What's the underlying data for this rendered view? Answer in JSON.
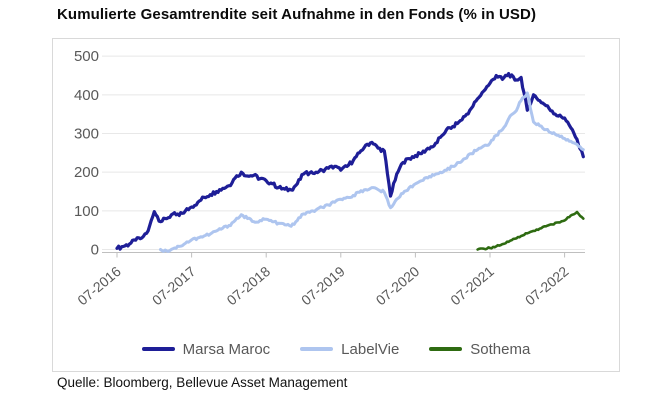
{
  "title": "Kumulierte Gesamtrendite seit Aufnahme in den Fonds (% in USD)",
  "source": "Quelle: Bloomberg, Bellevue Asset Management",
  "colors": {
    "grid": "#e8e8e8",
    "axis_line": "#bfbfbf",
    "tick_text": "#595959",
    "panel_border": "#d9d9d9",
    "title_text": "#0b0b0b",
    "source_text": "#111111"
  },
  "chart_data": {
    "type": "line",
    "title": "Kumulierte Gesamtrendite seit Aufnahme in den Fonds (% in USD)",
    "ylabel": "",
    "xlabel": "",
    "y_axis": {
      "ticks": [
        0,
        100,
        200,
        300,
        400,
        500
      ],
      "drawn_range": [
        -10,
        545
      ],
      "unit": "%"
    },
    "x_axis": {
      "tick_labels": [
        "07-2016",
        "07-2017",
        "07-2018",
        "07-2019",
        "07-2020",
        "07-2021",
        "07-2022"
      ],
      "tick_month_index": [
        0,
        12,
        24,
        36,
        48,
        60,
        72
      ],
      "start_month": "2016-07",
      "end_month": "2022-10",
      "label_rotation_deg": -40
    },
    "grid": "horizontal",
    "legend_position": "bottom-center",
    "cadence": "monthly",
    "series": [
      {
        "name": "Marsa Maroc",
        "color": "#1e1e97",
        "start_month_index": 0,
        "start_month": "2016-07",
        "values": [
          3,
          8,
          14,
          24,
          30,
          48,
          98,
          72,
          80,
          92,
          88,
          100,
          110,
          122,
          135,
          142,
          150,
          158,
          165,
          185,
          200,
          190,
          192,
          183,
          178,
          170,
          160,
          156,
          154,
          170,
          195,
          198,
          200,
          205,
          210,
          215,
          205,
          215,
          230,
          250,
          270,
          277,
          262,
          255,
          138,
          195,
          225,
          235,
          243,
          248,
          262,
          268,
          290,
          310,
          318,
          330,
          345,
          365,
          390,
          410,
          430,
          450,
          440,
          455,
          438,
          445,
          360,
          400,
          385,
          372,
          358,
          345,
          340,
          315,
          285,
          240
        ]
      },
      {
        "name": "LabelVie",
        "color": "#aec5ef",
        "start_month_index": 7,
        "start_month": "2017-02",
        "values": [
          0,
          -4,
          2,
          8,
          16,
          25,
          30,
          35,
          40,
          48,
          55,
          62,
          75,
          90,
          80,
          72,
          75,
          78,
          72,
          68,
          64,
          60,
          75,
          92,
          96,
          102,
          109,
          115,
          122,
          130,
          135,
          140,
          148,
          155,
          160,
          155,
          148,
          108,
          130,
          145,
          160,
          170,
          178,
          185,
          192,
          200,
          205,
          215,
          225,
          235,
          248,
          258,
          268,
          275,
          295,
          310,
          338,
          355,
          385,
          405,
          330,
          320,
          310,
          300,
          295,
          287,
          280,
          272,
          258
        ]
      },
      {
        "name": "Sothema",
        "color": "#2e6b11",
        "start_month_index": 58,
        "start_month": "2021-05",
        "values": [
          0,
          2,
          4,
          8,
          14,
          20,
          28,
          35,
          42,
          48,
          54,
          60,
          65,
          70,
          75,
          88,
          97,
          80
        ]
      }
    ]
  }
}
